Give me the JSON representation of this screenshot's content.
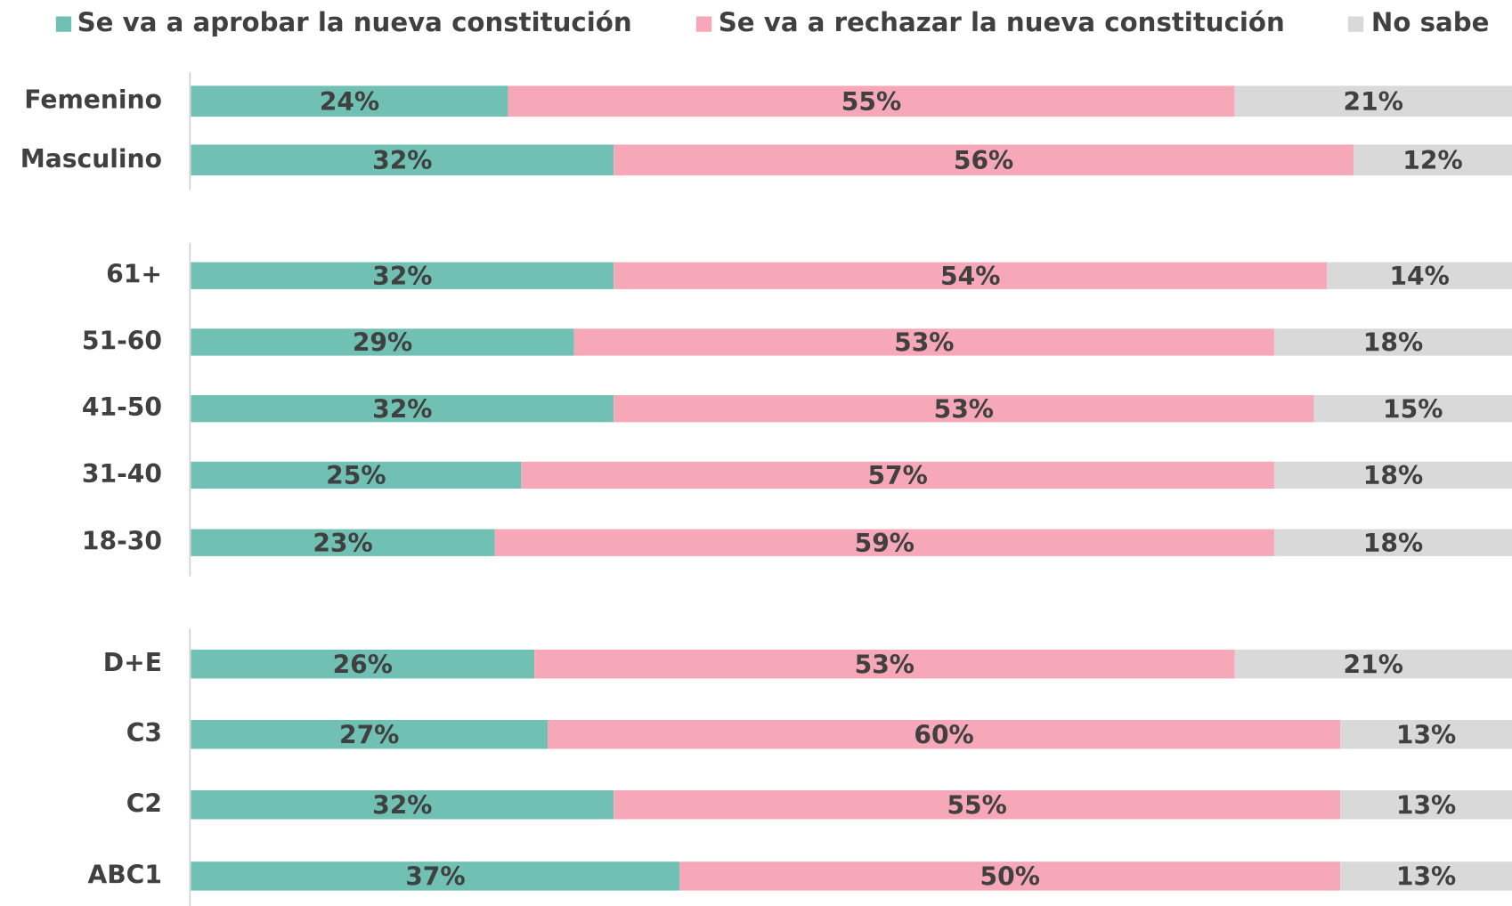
{
  "chart_data": [
    {
      "type": "stacked_barh",
      "categories": [
        "Femenino",
        "Masculino"
      ],
      "xlim": [
        0,
        100
      ],
      "series": [
        {
          "name": "Se va a aprobar la nueva constitución",
          "color": "#70c1b3",
          "values": [
            24,
            32
          ],
          "value_labels": [
            "24%",
            "32%"
          ]
        },
        {
          "name": "Se va a rechazar la nueva constitución",
          "color": "#f7a8b8",
          "values": [
            55,
            56
          ],
          "value_labels": [
            "55%",
            "56%"
          ]
        },
        {
          "name": "No sabe",
          "color": "#d9d9d9",
          "values": [
            21,
            12
          ],
          "value_labels": [
            "21%",
            "12%"
          ]
        }
      ]
    },
    {
      "type": "stacked_barh",
      "categories": [
        "61+",
        "51-60",
        "41-50",
        "31-40",
        "18-30"
      ],
      "xlim": [
        0,
        100
      ],
      "series": [
        {
          "name": "Se va a aprobar la nueva constitución",
          "color": "#70c1b3",
          "values": [
            32,
            29,
            32,
            25,
            23
          ],
          "value_labels": [
            "32%",
            "29%",
            "32%",
            "25%",
            "23%"
          ]
        },
        {
          "name": "Se va a rechazar la nueva constitución",
          "color": "#f7a8b8",
          "values": [
            54,
            53,
            53,
            57,
            59
          ],
          "value_labels": [
            "54%",
            "53%",
            "53%",
            "57%",
            "59%"
          ]
        },
        {
          "name": "No sabe",
          "color": "#d9d9d9",
          "values": [
            14,
            18,
            15,
            18,
            18
          ],
          "value_labels": [
            "14%",
            "18%",
            "15%",
            "18%",
            "18%"
          ]
        }
      ]
    },
    {
      "type": "stacked_barh",
      "categories": [
        "D+E",
        "C3",
        "C2",
        "ABC1"
      ],
      "xlim": [
        0,
        100
      ],
      "series": [
        {
          "name": "Se va a aprobar la nueva constitución",
          "color": "#70c1b3",
          "values": [
            26,
            27,
            32,
            37
          ],
          "value_labels": [
            "26%",
            "27%",
            "32%",
            "37%"
          ]
        },
        {
          "name": "Se va a rechazar la nueva constitución",
          "color": "#f7a8b8",
          "values": [
            53,
            60,
            55,
            50
          ],
          "value_labels": [
            "53%",
            "60%",
            "55%",
            "50%"
          ]
        },
        {
          "name": "No sabe",
          "color": "#d9d9d9",
          "values": [
            21,
            13,
            13,
            13
          ],
          "value_labels": [
            "21%",
            "13%",
            "13%",
            "13%"
          ]
        }
      ]
    }
  ]
}
